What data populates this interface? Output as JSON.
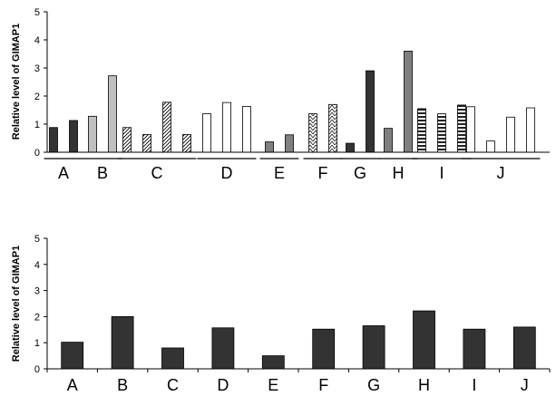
{
  "colors": {
    "dark": "#333333",
    "medium": "#7f7f7f",
    "light": "#c0c0c0",
    "white": "#ffffff",
    "stroke": "#000000"
  },
  "chart_data": [
    {
      "type": "bar",
      "ylabel": "Relative level of GIMAP1",
      "ylim": [
        0,
        5
      ],
      "yticks": [
        "0",
        "1",
        "2",
        "3",
        "4",
        "5"
      ],
      "grid": false,
      "groups": [
        {
          "label": "A",
          "bars": [
            {
              "value": 0.88,
              "fill": "dark"
            },
            {
              "value": 1.13,
              "fill": "dark"
            }
          ]
        },
        {
          "label": "B",
          "bars": [
            {
              "value": 1.28,
              "fill": "light"
            },
            {
              "value": 2.72,
              "fill": "light"
            }
          ]
        },
        {
          "label": "C",
          "bars": [
            {
              "value": 0.88,
              "fill": "diag-hatch"
            },
            {
              "value": 0.63,
              "fill": "diag-hatch"
            },
            {
              "value": 1.78,
              "fill": "diag-hatch"
            },
            {
              "value": 0.63,
              "fill": "diag-hatch"
            }
          ]
        },
        {
          "label": "D",
          "bars": [
            {
              "value": 1.37,
              "fill": "white"
            },
            {
              "value": 1.77,
              "fill": "white"
            },
            {
              "value": 1.63,
              "fill": "white"
            }
          ]
        },
        {
          "label": "E",
          "bars": [
            {
              "value": 0.37,
              "fill": "medium"
            },
            {
              "value": 0.62,
              "fill": "medium"
            }
          ]
        },
        {
          "label": "F",
          "bars": [
            {
              "value": 1.37,
              "fill": "zigzag"
            },
            {
              "value": 1.7,
              "fill": "zigzag"
            }
          ]
        },
        {
          "label": "G",
          "bars": [
            {
              "value": 0.32,
              "fill": "dark"
            },
            {
              "value": 2.9,
              "fill": "dark"
            }
          ]
        },
        {
          "label": "H",
          "bars": [
            {
              "value": 0.85,
              "fill": "medium"
            },
            {
              "value": 3.6,
              "fill": "medium"
            }
          ]
        },
        {
          "label": "I",
          "bars": [
            {
              "value": 1.55,
              "fill": "horiz-stripe"
            },
            {
              "value": 1.37,
              "fill": "horiz-stripe"
            },
            {
              "value": 1.68,
              "fill": "horiz-stripe"
            }
          ]
        },
        {
          "label": "J",
          "bars": [
            {
              "value": 1.62,
              "fill": "white"
            },
            {
              "value": 0.4,
              "fill": "white"
            },
            {
              "value": 1.25,
              "fill": "white"
            },
            {
              "value": 1.58,
              "fill": "white"
            }
          ]
        }
      ]
    },
    {
      "type": "bar",
      "ylabel": "Relative level of GIMAP1",
      "ylim": [
        0,
        5
      ],
      "yticks": [
        "0",
        "1",
        "2",
        "3",
        "4",
        "5"
      ],
      "grid": false,
      "categories": [
        "A",
        "B",
        "C",
        "D",
        "E",
        "F",
        "G",
        "H",
        "I",
        "J"
      ],
      "values": [
        1.02,
        2.0,
        0.8,
        1.57,
        0.5,
        1.52,
        1.65,
        2.22,
        1.52,
        1.6
      ],
      "fill": "dark"
    }
  ]
}
